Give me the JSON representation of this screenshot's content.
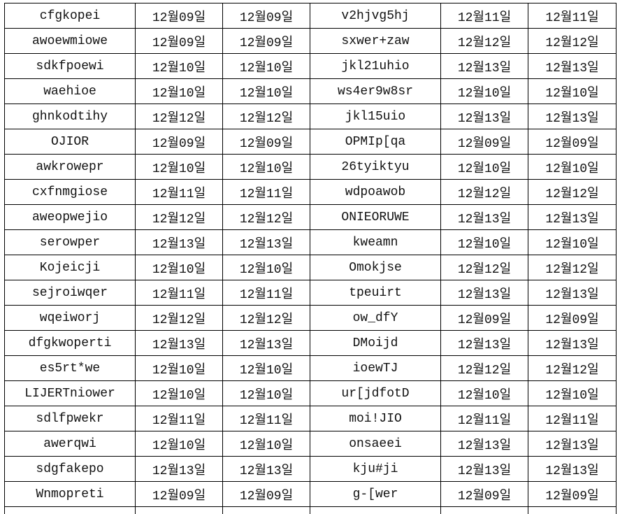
{
  "sheet": {
    "rows": [
      [
        "cfgkopei",
        "12월09일",
        "12월09일",
        "v2hjvg5hj",
        "12월11일",
        "12월11일"
      ],
      [
        "awoewmiowe",
        "12월09일",
        "12월09일",
        "sxwer+zaw",
        "12월12일",
        "12월12일"
      ],
      [
        "sdkfpoewi",
        "12월10일",
        "12월10일",
        "jkl21uhio",
        "12월13일",
        "12월13일"
      ],
      [
        "waehioe",
        "12월10일",
        "12월10일",
        "ws4er9w8sr",
        "12월10일",
        "12월10일"
      ],
      [
        "ghnkodtihy",
        "12월12일",
        "12월12일",
        "jkl15uio",
        "12월13일",
        "12월13일"
      ],
      [
        "OJIOR",
        "12월09일",
        "12월09일",
        "OPMIp[qa",
        "12월09일",
        "12월09일"
      ],
      [
        "awkrowepr",
        "12월10일",
        "12월10일",
        "26tyiktyu",
        "12월10일",
        "12월10일"
      ],
      [
        "cxfnmgiose",
        "12월11일",
        "12월11일",
        "wdpoawob",
        "12월12일",
        "12월12일"
      ],
      [
        "aweopwejio",
        "12월12일",
        "12월12일",
        "ONIEORUWE",
        "12월13일",
        "12월13일"
      ],
      [
        "serowper",
        "12월13일",
        "12월13일",
        "kweamn",
        "12월10일",
        "12월10일"
      ],
      [
        "Kojeicji",
        "12월10일",
        "12월10일",
        "Omokjse",
        "12월12일",
        "12월12일"
      ],
      [
        "sejroiwqer",
        "12월11일",
        "12월11일",
        "tpeuirt",
        "12월13일",
        "12월13일"
      ],
      [
        "wqeiworj",
        "12월12일",
        "12월12일",
        "ow_dfY",
        "12월09일",
        "12월09일"
      ],
      [
        "dfgkwoperti",
        "12월13일",
        "12월13일",
        "DMoijd",
        "12월13일",
        "12월13일"
      ],
      [
        "es5rt*we",
        "12월10일",
        "12월10일",
        "ioewTJ",
        "12월12일",
        "12월12일"
      ],
      [
        "LIJERTniower",
        "12월10일",
        "12월10일",
        "ur[jdfotD",
        "12월10일",
        "12월10일"
      ],
      [
        "sdlfpwekr",
        "12월11일",
        "12월11일",
        "moi!JIO",
        "12월11일",
        "12월11일"
      ],
      [
        "awerqwi",
        "12월10일",
        "12월10일",
        "onsaeei",
        "12월13일",
        "12월13일"
      ],
      [
        "sdgfakepo",
        "12월13일",
        "12월13일",
        "kju#ji",
        "12월13일",
        "12월13일"
      ],
      [
        "Wnmopreti",
        "12월09일",
        "12월09일",
        "g-[wer",
        "12월09일",
        "12월09일"
      ]
    ]
  }
}
